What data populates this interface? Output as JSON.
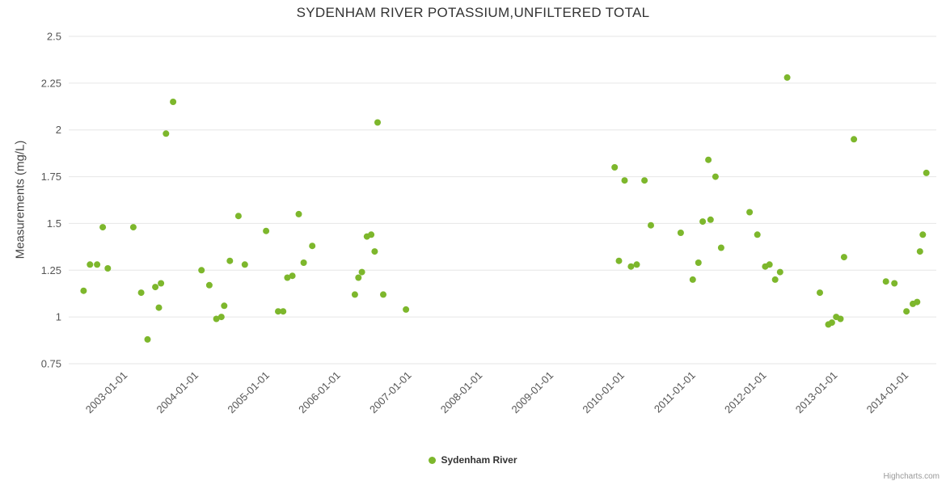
{
  "credits": "Highcharts.com",
  "chart_data": {
    "type": "scatter",
    "title": "SYDENHAM RIVER POTASSIUM,UNFILTERED TOTAL",
    "xlabel": "",
    "ylabel": "Measurements (mg/L)",
    "ylim": [
      0.75,
      2.5
    ],
    "y_ticks": [
      0.75,
      1,
      1.25,
      1.5,
      1.75,
      2,
      2.25,
      2.5
    ],
    "xlim": [
      2002.2,
      2014.42
    ],
    "x_ticks": [
      2003,
      2004,
      2005,
      2006,
      2007,
      2008,
      2009,
      2010,
      2011,
      2012,
      2013,
      2014
    ],
    "x_tick_labels": [
      "2003-01-01",
      "2004-01-01",
      "2005-01-01",
      "2006-01-01",
      "2007-01-01",
      "2008-01-01",
      "2009-01-01",
      "2010-01-01",
      "2011-01-01",
      "2012-01-01",
      "2013-01-01",
      "2014-01-01"
    ],
    "grid": "horizontal",
    "legend_position": "bottom-center",
    "series": [
      {
        "name": "Sydenham River",
        "color": "#7db72c",
        "points": [
          [
            2002.41,
            1.14
          ],
          [
            2002.5,
            1.28
          ],
          [
            2002.6,
            1.28
          ],
          [
            2002.68,
            1.48
          ],
          [
            2002.75,
            1.26
          ],
          [
            2003.11,
            1.48
          ],
          [
            2003.22,
            1.13
          ],
          [
            2003.31,
            0.88
          ],
          [
            2003.42,
            1.16
          ],
          [
            2003.47,
            1.05
          ],
          [
            2003.5,
            1.18
          ],
          [
            2003.57,
            1.98
          ],
          [
            2003.67,
            2.15
          ],
          [
            2004.07,
            1.25
          ],
          [
            2004.18,
            1.17
          ],
          [
            2004.28,
            0.99
          ],
          [
            2004.35,
            1.0
          ],
          [
            2004.39,
            1.06
          ],
          [
            2004.47,
            1.3
          ],
          [
            2004.59,
            1.54
          ],
          [
            2004.68,
            1.28
          ],
          [
            2004.98,
            1.46
          ],
          [
            2005.15,
            1.03
          ],
          [
            2005.22,
            1.03
          ],
          [
            2005.28,
            1.21
          ],
          [
            2005.35,
            1.22
          ],
          [
            2005.44,
            1.55
          ],
          [
            2005.51,
            1.29
          ],
          [
            2005.63,
            1.38
          ],
          [
            2006.23,
            1.12
          ],
          [
            2006.28,
            1.21
          ],
          [
            2006.33,
            1.24
          ],
          [
            2006.4,
            1.43
          ],
          [
            2006.46,
            1.44
          ],
          [
            2006.51,
            1.35
          ],
          [
            2006.55,
            2.04
          ],
          [
            2006.63,
            1.12
          ],
          [
            2006.95,
            1.04
          ],
          [
            2009.89,
            1.8
          ],
          [
            2009.95,
            1.3
          ],
          [
            2010.03,
            1.73
          ],
          [
            2010.12,
            1.27
          ],
          [
            2010.2,
            1.28
          ],
          [
            2010.31,
            1.73
          ],
          [
            2010.4,
            1.49
          ],
          [
            2010.82,
            1.45
          ],
          [
            2010.99,
            1.2
          ],
          [
            2011.07,
            1.29
          ],
          [
            2011.13,
            1.51
          ],
          [
            2011.21,
            1.84
          ],
          [
            2011.24,
            1.52
          ],
          [
            2011.31,
            1.75
          ],
          [
            2011.39,
            1.37
          ],
          [
            2011.79,
            1.56
          ],
          [
            2011.9,
            1.44
          ],
          [
            2012.01,
            1.27
          ],
          [
            2012.07,
            1.28
          ],
          [
            2012.15,
            1.2
          ],
          [
            2012.22,
            1.24
          ],
          [
            2012.32,
            2.28
          ],
          [
            2012.78,
            1.13
          ],
          [
            2012.9,
            0.96
          ],
          [
            2012.95,
            0.97
          ],
          [
            2013.01,
            1.0
          ],
          [
            2013.07,
            0.99
          ],
          [
            2013.12,
            1.32
          ],
          [
            2013.26,
            1.95
          ],
          [
            2013.71,
            1.19
          ],
          [
            2013.83,
            1.18
          ],
          [
            2014.0,
            1.03
          ],
          [
            2014.09,
            1.07
          ],
          [
            2014.15,
            1.08
          ],
          [
            2014.19,
            1.35
          ],
          [
            2014.23,
            1.44
          ],
          [
            2014.28,
            1.77
          ]
        ]
      }
    ]
  }
}
